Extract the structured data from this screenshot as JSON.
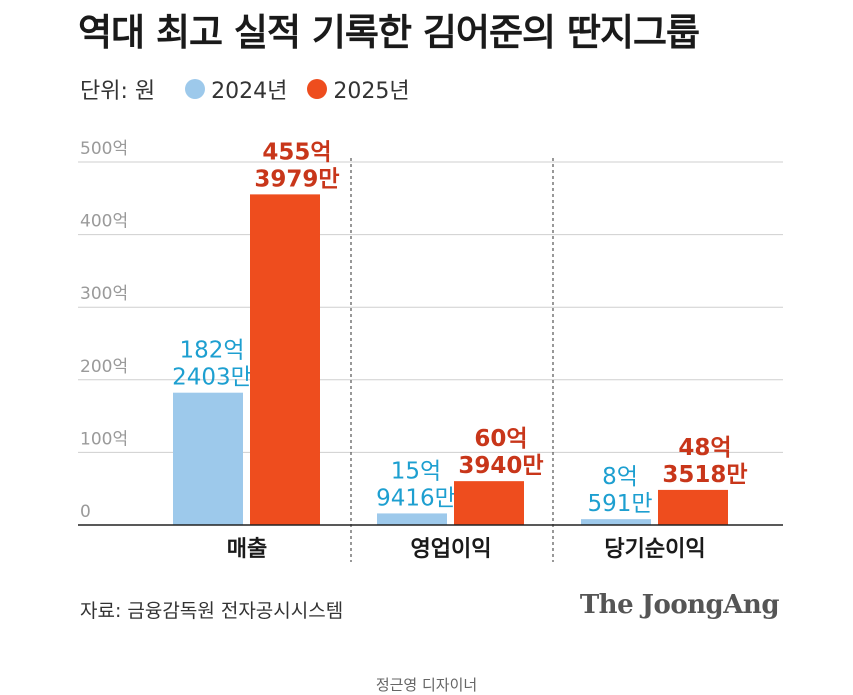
{
  "title": "역대 최고 실적 기록한 김어준의 딴지그룹",
  "unit_label": "단위: 원",
  "source": "자료: 금융감독원 전자공시시스템",
  "brand": "The JoongAng",
  "credit": "정근영 디자이너",
  "colors": {
    "s2024": "#9dc9eb",
    "s2025": "#ee4d1e",
    "label2024": "#1d9fd0",
    "label2025": "#c8361a"
  },
  "chart_data": {
    "type": "bar",
    "title": "역대 최고 실적 기록한 김어준의 딴지그룹",
    "xlabel": "",
    "ylabel": "",
    "unit": "원",
    "categories": [
      "매출",
      "영업이익",
      "당기순이익"
    ],
    "yticks": [
      "0",
      "100억",
      "200억",
      "300억",
      "400억",
      "500억"
    ],
    "ylim": [
      0,
      500
    ],
    "y_unit": "억원",
    "grid": true,
    "legend": "top-left",
    "series": [
      {
        "name": "2024년",
        "values": [
          182.2403,
          15.9416,
          8.0591
        ],
        "labels": [
          [
            "182억",
            "2403만"
          ],
          [
            "15억",
            "9416만"
          ],
          [
            "8억",
            "591만"
          ]
        ]
      },
      {
        "name": "2025년",
        "values": [
          455.3979,
          60.394,
          48.3518
        ],
        "labels": [
          [
            "455억",
            "3979만"
          ],
          [
            "60억",
            "3940만"
          ],
          [
            "48억",
            "3518만"
          ]
        ]
      }
    ]
  }
}
